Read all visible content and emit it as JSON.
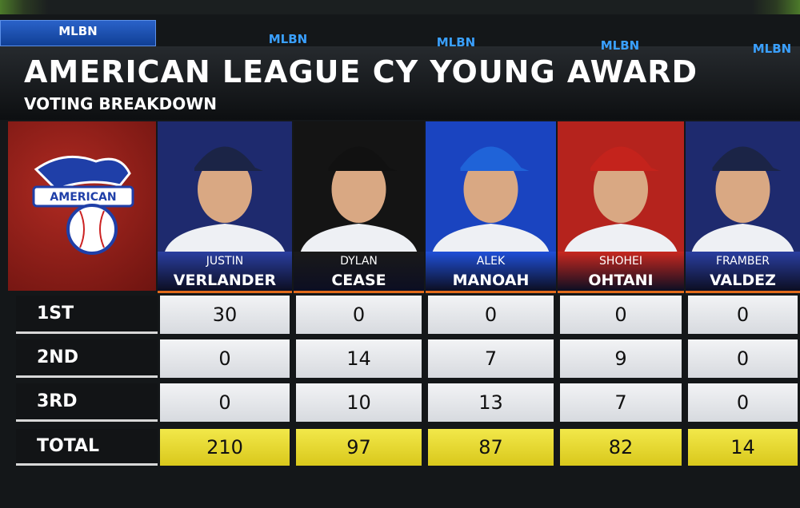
{
  "header": {
    "mlbn": [
      "MLBN",
      "MLBN",
      "MLBN",
      "MLBN",
      "MLBN"
    ],
    "title": "AMERICAN LEAGUE CY YOUNG AWARD",
    "subtitle": "VOTING BREAKDOWN"
  },
  "logo": {
    "label": "AMERICAN"
  },
  "table": {
    "players": [
      {
        "first": "JUSTIN",
        "last": "VERLANDER"
      },
      {
        "first": "DYLAN",
        "last": "CEASE"
      },
      {
        "first": "ALEK",
        "last": "MANOAH"
      },
      {
        "first": "SHOHEI",
        "last": "OHTANI"
      },
      {
        "first": "FRAMBER",
        "last": "VALDEZ"
      }
    ],
    "rows": [
      {
        "label": "1ST",
        "values": [
          30,
          0,
          0,
          0,
          0
        ]
      },
      {
        "label": "2ND",
        "values": [
          0,
          14,
          7,
          9,
          0
        ]
      },
      {
        "label": "3RD",
        "values": [
          0,
          10,
          13,
          7,
          0
        ]
      },
      {
        "label": "TOTAL",
        "values": [
          210,
          97,
          87,
          82,
          14
        ]
      }
    ]
  }
}
